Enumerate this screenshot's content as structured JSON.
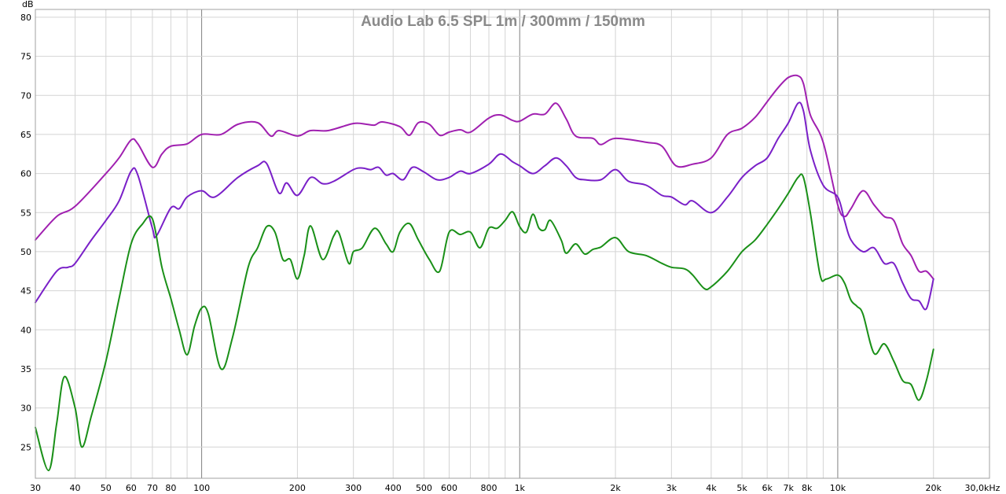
{
  "chart_data": {
    "type": "line",
    "title": "Audio Lab 6.5 SPL 1m  / 300mm  / 150mm",
    "ylabel": "dB",
    "x_unit_label": "30,0kHz",
    "x_scale": "log",
    "xlim": [
      30,
      30000
    ],
    "ylim": [
      21,
      81
    ],
    "grid": true,
    "y_ticks": [
      25,
      30,
      35,
      40,
      45,
      50,
      55,
      60,
      65,
      70,
      75,
      80
    ],
    "x_ticks": [
      {
        "value": 30,
        "label": "30"
      },
      {
        "value": 40,
        "label": "40"
      },
      {
        "value": 50,
        "label": "50"
      },
      {
        "value": 60,
        "label": "60"
      },
      {
        "value": 70,
        "label": "70"
      },
      {
        "value": 80,
        "label": "80"
      },
      {
        "value": 100,
        "label": "100"
      },
      {
        "value": 200,
        "label": "200"
      },
      {
        "value": 300,
        "label": "300"
      },
      {
        "value": 400,
        "label": "400"
      },
      {
        "value": 500,
        "label": "500"
      },
      {
        "value": 600,
        "label": "600"
      },
      {
        "value": 800,
        "label": "800"
      },
      {
        "value": 1000,
        "label": "1k"
      },
      {
        "value": 2000,
        "label": "2k"
      },
      {
        "value": 3000,
        "label": "3k"
      },
      {
        "value": 4000,
        "label": "4k"
      },
      {
        "value": 5000,
        "label": "5k"
      },
      {
        "value": 6000,
        "label": "6k"
      },
      {
        "value": 7000,
        "label": "7k"
      },
      {
        "value": 8000,
        "label": "8k"
      },
      {
        "value": 10000,
        "label": "10k"
      },
      {
        "value": 20000,
        "label": "20k"
      }
    ],
    "series": [
      {
        "color": "#a020b0",
        "points": [
          [
            30,
            51.5
          ],
          [
            35,
            54.5
          ],
          [
            40,
            55.8
          ],
          [
            50,
            60
          ],
          [
            55,
            62
          ],
          [
            60,
            64.3
          ],
          [
            63,
            63.8
          ],
          [
            70,
            60.8
          ],
          [
            75,
            62.5
          ],
          [
            80,
            63.5
          ],
          [
            90,
            63.8
          ],
          [
            100,
            65
          ],
          [
            115,
            65
          ],
          [
            130,
            66.3
          ],
          [
            150,
            66.5
          ],
          [
            165,
            64.8
          ],
          [
            175,
            65.5
          ],
          [
            200,
            64.8
          ],
          [
            220,
            65.5
          ],
          [
            250,
            65.5
          ],
          [
            300,
            66.4
          ],
          [
            330,
            66.3
          ],
          [
            350,
            66.2
          ],
          [
            370,
            66.6
          ],
          [
            420,
            66
          ],
          [
            450,
            64.9
          ],
          [
            480,
            66.5
          ],
          [
            520,
            66.3
          ],
          [
            560,
            64.9
          ],
          [
            600,
            65.3
          ],
          [
            650,
            65.6
          ],
          [
            700,
            65.3
          ],
          [
            800,
            67.1
          ],
          [
            870,
            67.5
          ],
          [
            950,
            66.8
          ],
          [
            1000,
            66.7
          ],
          [
            1100,
            67.6
          ],
          [
            1200,
            67.6
          ],
          [
            1300,
            69
          ],
          [
            1400,
            67
          ],
          [
            1500,
            64.8
          ],
          [
            1700,
            64.5
          ],
          [
            1800,
            63.7
          ],
          [
            2000,
            64.5
          ],
          [
            2500,
            64
          ],
          [
            2800,
            63.5
          ],
          [
            3100,
            61
          ],
          [
            3500,
            61.2
          ],
          [
            4000,
            62
          ],
          [
            4500,
            65
          ],
          [
            5000,
            65.8
          ],
          [
            5500,
            67.2
          ],
          [
            6000,
            69.2
          ],
          [
            6500,
            71
          ],
          [
            7000,
            72.3
          ],
          [
            7500,
            72.5
          ],
          [
            7800,
            71.5
          ],
          [
            8200,
            67.5
          ],
          [
            9000,
            64
          ],
          [
            10000,
            56
          ],
          [
            10500,
            54.5
          ],
          [
            11000,
            55.5
          ],
          [
            12000,
            57.8
          ],
          [
            13000,
            56
          ],
          [
            14000,
            54.5
          ],
          [
            15000,
            54
          ],
          [
            16000,
            51
          ],
          [
            17000,
            49.5
          ],
          [
            18000,
            47.5
          ],
          [
            19000,
            47.5
          ],
          [
            20000,
            46.5
          ]
        ]
      },
      {
        "color": "#7a20c8",
        "points": [
          [
            30,
            43.5
          ],
          [
            35,
            47.5
          ],
          [
            38,
            48
          ],
          [
            40,
            48.5
          ],
          [
            45,
            51.5
          ],
          [
            50,
            54
          ],
          [
            55,
            56.5
          ],
          [
            60,
            60.3
          ],
          [
            63,
            59.8
          ],
          [
            70,
            53
          ],
          [
            72,
            52
          ],
          [
            80,
            55.6
          ],
          [
            85,
            55.5
          ],
          [
            90,
            57
          ],
          [
            100,
            57.8
          ],
          [
            110,
            57
          ],
          [
            130,
            59.5
          ],
          [
            150,
            61
          ],
          [
            160,
            61.3
          ],
          [
            175,
            57.5
          ],
          [
            185,
            58.8
          ],
          [
            200,
            57.2
          ],
          [
            220,
            59.5
          ],
          [
            240,
            58.7
          ],
          [
            260,
            59
          ],
          [
            300,
            60.5
          ],
          [
            320,
            60.7
          ],
          [
            340,
            60.5
          ],
          [
            360,
            60.8
          ],
          [
            380,
            59.8
          ],
          [
            400,
            60
          ],
          [
            430,
            59.2
          ],
          [
            460,
            60.8
          ],
          [
            500,
            60.2
          ],
          [
            550,
            59.2
          ],
          [
            600,
            59.5
          ],
          [
            650,
            60.3
          ],
          [
            700,
            60
          ],
          [
            800,
            61.2
          ],
          [
            870,
            62.5
          ],
          [
            950,
            61.5
          ],
          [
            1000,
            61
          ],
          [
            1100,
            60
          ],
          [
            1200,
            61
          ],
          [
            1300,
            62
          ],
          [
            1400,
            61
          ],
          [
            1500,
            59.5
          ],
          [
            1600,
            59.2
          ],
          [
            1800,
            59.2
          ],
          [
            2000,
            60.5
          ],
          [
            2200,
            59
          ],
          [
            2500,
            58.5
          ],
          [
            2800,
            57.2
          ],
          [
            3000,
            57
          ],
          [
            3300,
            56
          ],
          [
            3500,
            56.5
          ],
          [
            4000,
            55
          ],
          [
            4500,
            57
          ],
          [
            5000,
            59.5
          ],
          [
            5500,
            61
          ],
          [
            6000,
            62
          ],
          [
            6500,
            64.5
          ],
          [
            7000,
            66.5
          ],
          [
            7500,
            69
          ],
          [
            7800,
            68
          ],
          [
            8200,
            63
          ],
          [
            9000,
            58.5
          ],
          [
            10000,
            57
          ],
          [
            10500,
            54
          ],
          [
            11000,
            51.5
          ],
          [
            12000,
            50
          ],
          [
            13000,
            50.5
          ],
          [
            14000,
            48.5
          ],
          [
            15000,
            48.5
          ],
          [
            16000,
            46
          ],
          [
            17000,
            44
          ],
          [
            18000,
            43.7
          ],
          [
            19000,
            42.7
          ],
          [
            20000,
            46.5
          ]
        ]
      },
      {
        "color": "#1a9018",
        "points": [
          [
            30,
            27.5
          ],
          [
            33,
            22
          ],
          [
            35,
            28
          ],
          [
            37,
            34
          ],
          [
            40,
            30
          ],
          [
            42,
            25
          ],
          [
            45,
            29
          ],
          [
            50,
            36
          ],
          [
            55,
            44
          ],
          [
            60,
            51
          ],
          [
            65,
            53.5
          ],
          [
            70,
            54.2
          ],
          [
            75,
            48
          ],
          [
            80,
            44
          ],
          [
            85,
            40
          ],
          [
            90,
            36.8
          ],
          [
            95,
            40.5
          ],
          [
            100,
            42.8
          ],
          [
            105,
            42
          ],
          [
            115,
            35
          ],
          [
            125,
            39
          ],
          [
            140,
            48
          ],
          [
            150,
            50.5
          ],
          [
            160,
            53.2
          ],
          [
            170,
            52.5
          ],
          [
            180,
            49
          ],
          [
            190,
            49
          ],
          [
            200,
            46.5
          ],
          [
            210,
            49.5
          ],
          [
            220,
            53.3
          ],
          [
            240,
            49
          ],
          [
            260,
            52
          ],
          [
            270,
            52.4
          ],
          [
            290,
            48.5
          ],
          [
            300,
            50
          ],
          [
            320,
            50.5
          ],
          [
            350,
            53
          ],
          [
            380,
            51
          ],
          [
            400,
            50
          ],
          [
            420,
            52.5
          ],
          [
            450,
            53.6
          ],
          [
            480,
            51.5
          ],
          [
            520,
            49
          ],
          [
            560,
            47.5
          ],
          [
            600,
            52.5
          ],
          [
            650,
            52.2
          ],
          [
            700,
            52.5
          ],
          [
            750,
            50.5
          ],
          [
            800,
            53
          ],
          [
            850,
            53
          ],
          [
            900,
            54
          ],
          [
            950,
            55.1
          ],
          [
            1000,
            53.2
          ],
          [
            1050,
            52.5
          ],
          [
            1100,
            54.8
          ],
          [
            1150,
            53
          ],
          [
            1200,
            52.8
          ],
          [
            1250,
            54
          ],
          [
            1350,
            51.5
          ],
          [
            1400,
            49.8
          ],
          [
            1500,
            51
          ],
          [
            1600,
            49.7
          ],
          [
            1700,
            50.3
          ],
          [
            1800,
            50.6
          ],
          [
            2000,
            51.8
          ],
          [
            2200,
            50
          ],
          [
            2500,
            49.5
          ],
          [
            2800,
            48.5
          ],
          [
            3000,
            48
          ],
          [
            3300,
            47.8
          ],
          [
            3500,
            47
          ],
          [
            3800,
            45.3
          ],
          [
            4000,
            45.5
          ],
          [
            4500,
            47.5
          ],
          [
            5000,
            50
          ],
          [
            5500,
            51.5
          ],
          [
            6000,
            53.5
          ],
          [
            6500,
            55.5
          ],
          [
            7000,
            57.5
          ],
          [
            7500,
            59.5
          ],
          [
            7800,
            59.5
          ],
          [
            8200,
            55
          ],
          [
            8800,
            47
          ],
          [
            9200,
            46.5
          ],
          [
            10000,
            47
          ],
          [
            10500,
            46
          ],
          [
            11000,
            43.8
          ],
          [
            11500,
            43
          ],
          [
            12000,
            42
          ],
          [
            13000,
            37
          ],
          [
            14000,
            38.2
          ],
          [
            15000,
            36
          ],
          [
            16000,
            33.5
          ],
          [
            17000,
            33
          ],
          [
            18000,
            31
          ],
          [
            19000,
            33.5
          ],
          [
            20000,
            37.5
          ]
        ]
      }
    ]
  }
}
